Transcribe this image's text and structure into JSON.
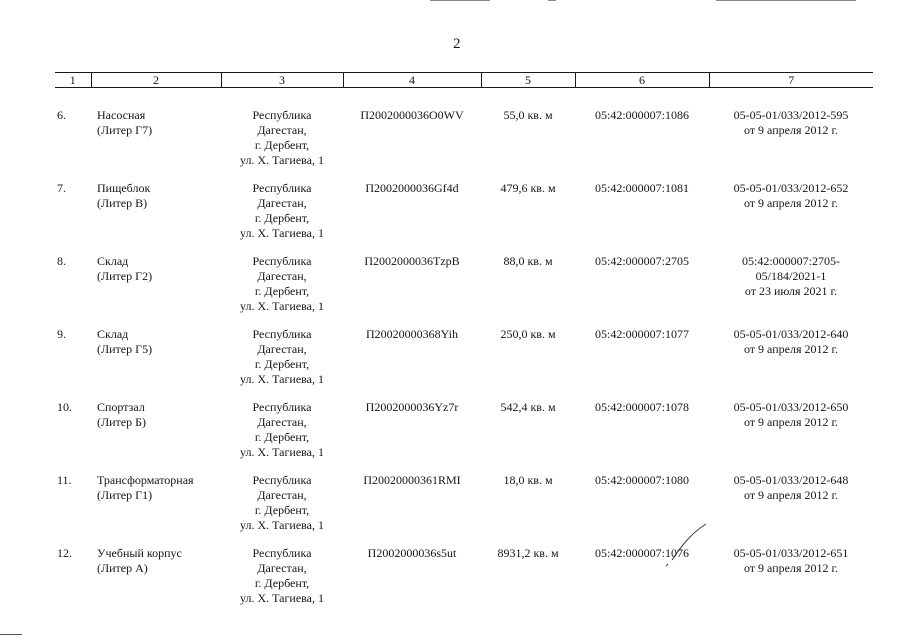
{
  "page": {
    "number": "2"
  },
  "table": {
    "header": [
      "1",
      "2",
      "3",
      "4",
      "5",
      "6",
      "7"
    ],
    "rows": [
      {
        "num": "6.",
        "name": [
          "Насосная",
          "(Литер Г7)"
        ],
        "address": [
          "Республика",
          "Дагестан,",
          "г. Дербент,",
          "ул. Х. Тагиева, 1"
        ],
        "code": "П2002000036О0WV",
        "area": "55,0 кв. м",
        "cadastre": "05:42:000007:1086",
        "registration": [
          "05-05-01/033/2012-595",
          "от 9 апреля 2012 г."
        ]
      },
      {
        "num": "7.",
        "name": [
          "Пищеблок",
          "(Литер В)"
        ],
        "address": [
          "Республика",
          "Дагестан,",
          "г. Дербент,",
          "ул. Х. Тагиева, 1"
        ],
        "code": "П2002000036Gf4d",
        "area": "479,6 кв. м",
        "cadastre": "05:42:000007:1081",
        "registration": [
          "05-05-01/033/2012-652",
          "от 9 апреля 2012 г."
        ]
      },
      {
        "num": "8.",
        "name": [
          "Склад",
          "(Литер Г2)"
        ],
        "address": [
          "Республика",
          "Дагестан,",
          "г. Дербент,",
          "ул. Х. Тагиева, 1"
        ],
        "code": "П2002000036TzpB",
        "area": "88,0 кв. м",
        "cadastre": "05:42:000007:2705",
        "registration": [
          "05:42:000007:2705-",
          "05/184/2021-1",
          "от 23 июля 2021 г."
        ]
      },
      {
        "num": "9.",
        "name": [
          "Склад",
          "(Литер Г5)"
        ],
        "address": [
          "Республика",
          "Дагестан,",
          "г. Дербент,",
          "ул. Х. Тагиева, 1"
        ],
        "code": "П20020000368Yih",
        "area": "250,0 кв. м",
        "cadastre": "05:42:000007:1077",
        "registration": [
          "05-05-01/033/2012-640",
          "от 9 апреля 2012 г."
        ]
      },
      {
        "num": "10.",
        "name": [
          "Спортзал",
          "(Литер Б)"
        ],
        "address": [
          "Республика",
          "Дагестан,",
          "г. Дербент,",
          "ул. Х. Тагиева, 1"
        ],
        "code": "П2002000036Yz7r",
        "area": "542,4 кв. м",
        "cadastre": "05:42:000007:1078",
        "registration": [
          "05-05-01/033/2012-650",
          "от 9 апреля 2012 г."
        ]
      },
      {
        "num": "11.",
        "name": [
          "Трансформаторная",
          "(Литер Г1)"
        ],
        "address": [
          "Республика",
          "Дагестан,",
          "г. Дербент,",
          "ул. Х. Тагиева, 1"
        ],
        "code": "П20020000361RMI",
        "area": "18,0 кв. м",
        "cadastre": "05:42:000007:1080",
        "registration": [
          "05-05-01/033/2012-648",
          "от 9 апреля 2012 г."
        ]
      },
      {
        "num": "12.",
        "name": [
          "Учебный корпус",
          "(Литер А)"
        ],
        "address": [
          "Республика",
          "Дагестан,",
          "г. Дербент,",
          "ул. Х. Тагиева, 1"
        ],
        "code": "П2002000036s5ut",
        "area": "8931,2 кв. м",
        "cadastre": "05:42:000007:1076",
        "registration": [
          "05-05-01/033/2012-651",
          "от 9 апреля 2012 г."
        ]
      }
    ]
  }
}
